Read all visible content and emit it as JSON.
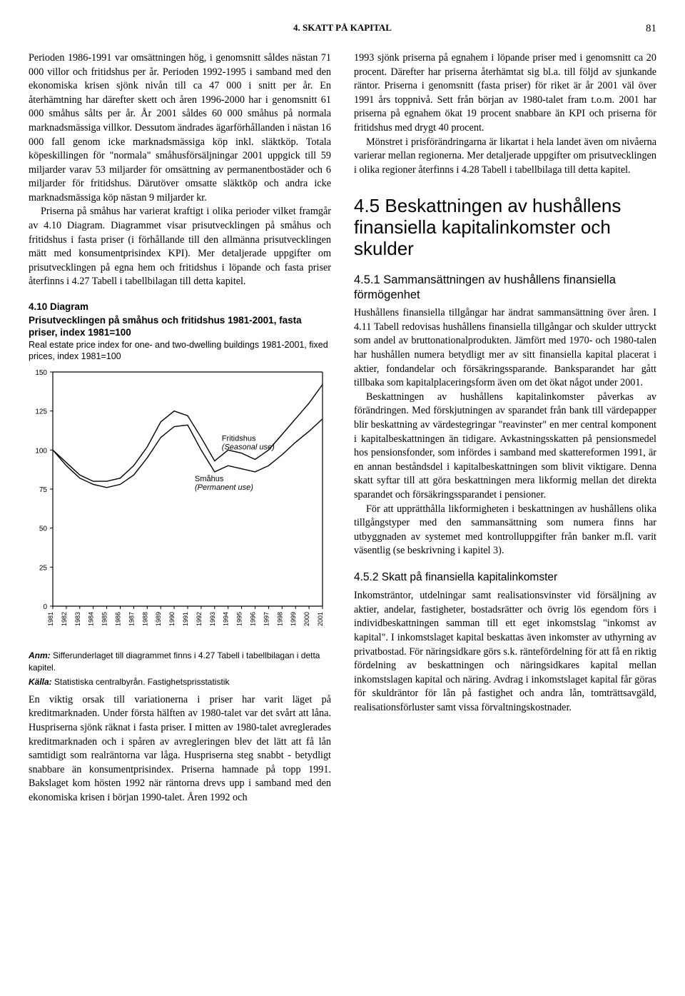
{
  "header": {
    "section_title": "4. SKATT PÅ KAPITAL",
    "page_number": "81"
  },
  "left": {
    "p1": "Perioden 1986-1991 var omsättningen hög, i genomsnitt såldes nästan 71 000 villor och fritidshus per år. Perioden 1992-1995 i samband med den ekonomiska krisen sjönk nivån till ca 47 000 i snitt per år. En återhämtning har därefter skett och åren 1996-2000 har i genomsnitt 61 000 småhus sålts per år. År 2001 såldes 60 000 småhus på normala marknadsmässiga villkor. Dessutom ändrades ägarförhållanden i nästan 16 000 fall genom icke marknadsmässiga köp inkl. släktköp. Totala köpeskillingen för \"normala\" småhusförsäljningar 2001 uppgick till 59 miljarder varav 53 miljarder för omsättning av permanentbostäder och 6 miljarder för fritidshus. Därutöver omsatte släktköp och andra icke marknadsmässiga köp nästan 9 miljarder kr.",
    "p2": "Priserna på småhus har varierat kraftigt i olika perioder vilket framgår av 4.10 Diagram. Diagrammet visar prisutvecklingen på småhus och fritidshus i fasta priser (i förhållande till den allmänna prisutvecklingen mätt med konsumentprisindex KPI). Mer detaljerade uppgifter om prisutvecklingen på egna hem och fritidshus i löpande och fasta priser återfinns i 4.27 Tabell i tabellbilagan till detta kapitel.",
    "diagram": {
      "label": "4.10 Diagram",
      "title_sv": "Prisutvecklingen på småhus och fritidshus 1981-2001, fasta priser, index 1981=100",
      "title_en": "Real estate price index for one- and two-dwelling buildings 1981-2001, fixed prices, index 1981=100",
      "note_anm_label": "Anm:",
      "note_anm": " Sifferunderlaget till diagrammet finns i 4.27 Tabell i tabellbilagan i detta kapitel.",
      "note_kalla_label": "Källa:",
      "note_kalla": " Statistiska centralbyrån. Fastighetsprisstatistik"
    },
    "p3": "En viktig orsak till variationerna i priser har varit läget på kreditmarknaden. Under första hälften av 1980-talet var det svårt att låna. Huspriserna sjönk räknat i fasta priser. I mitten av 1980-talet avreglerades kreditmarknaden och i spåren av avregleringen blev det lätt att få lån samtidigt som realräntorna var låga. Huspriserna steg snabbt - betydligt snabbare än konsumentprisindex. Priserna hamnade på topp 1991. Bakslaget kom hösten 1992 när räntorna drevs upp i samband med den ekonomiska krisen i början 1990-talet. Åren 1992 och"
  },
  "right": {
    "p1": "1993 sjönk priserna på egnahem i löpande priser med i genomsnitt ca 20 procent. Därefter har priserna återhämtat sig bl.a. till följd av sjunkande räntor. Priserna i genomsnitt (fasta priser) för riket är år 2001 väl över 1991 års toppnivå. Sett från början av 1980-talet fram t.o.m. 2001 har priserna på egnahem ökat 19 procent snabbare än KPI och priserna för fritidshus med drygt 40 procent.",
    "p2": "Mönstret i prisförändringarna är likartat i hela landet även om nivåerna varierar mellan regionerna. Mer detaljerade uppgifter om prisutvecklingen i olika regioner återfinns i 4.28 Tabell i tabellbilaga till detta kapitel.",
    "section_heading": "4.5 Beskattningen av hushållens finansiella kapitalinkomster och skulder",
    "sub1_heading": "4.5.1 Sammansättningen av hushållens finansiella förmögenhet",
    "sub1_p1": "Hushållens finansiella tillgångar har ändrat sammansättning över åren. I 4.11 Tabell redovisas hushållens finansiella tillgångar och skulder uttryckt som andel av bruttonationalprodukten. Jämfört med 1970- och 1980-talen har hushållen numera betydligt mer av sitt finansiella kapital placerat i aktier, fondandelar och försäkringssparande. Banksparandet har gått tillbaka som kapitalplaceringsform även om det ökat något under 2001.",
    "sub1_p2": "Beskattningen av hushållens kapitalinkomster påverkas av förändringen. Med förskjutningen av sparandet från bank till värdepapper blir beskattning av värdestegringar \"reavinster\" en mer central komponent i kapitalbeskattningen än tidigare. Avkastningsskatten på pensionsmedel hos pensionsfonder, som infördes i samband med skattereformen 1991, är en annan beståndsdel i kapitalbeskattningen som blivit viktigare. Denna skatt syftar till att göra beskattningen mera likformig mellan det direkta sparandet och försäkringssparandet i pensioner.",
    "sub1_p3": "För att upprätthålla likformigheten i beskattningen av hushållens olika tillgångstyper med den sammansättning som numera finns har utbyggnaden av systemet med kontrolluppgifter från banker m.fl. varit väsentlig (se beskrivning i kapitel 3).",
    "sub2_heading": "4.5.2 Skatt på finansiella kapitalinkomster",
    "sub2_p1": "Inkomsträntor, utdelningar samt realisationsvinster vid försäljning av aktier, andelar, fastigheter, bostadsrätter och övrig lös egendom förs i individbeskattningen samman till ett eget inkomstslag \"inkomst av kapital\". I inkomstslaget kapital beskattas även inkomster av uthyrning av privatbostad. För näringsidkare görs s.k. räntefördelning för att få en riktig fördelning av beskattningen och näringsidkares kapital mellan inkomstslagen kapital och näring. Avdrag i inkomstslaget kapital får göras för skuldräntor för lån på fastighet och andra lån, tomträttsavgäld, realisationsförluster samt vissa förvaltningskostnader."
  },
  "chart": {
    "type": "line",
    "ylim": [
      0,
      150
    ],
    "yticks": [
      0,
      25,
      50,
      75,
      100,
      125,
      150
    ],
    "years": [
      "1981",
      "1982",
      "1983",
      "1984",
      "1985",
      "1986",
      "1987",
      "1988",
      "1989",
      "1990",
      "1991",
      "1992",
      "1993",
      "1994",
      "1995",
      "1996",
      "1997",
      "1998",
      "1999",
      "2000",
      "2001"
    ],
    "series": [
      {
        "name": "Småhus",
        "label_line1": "Småhus",
        "label_line2": "(Permanent use)",
        "color": "#000000",
        "stroke_width": 1.4,
        "values": [
          100,
          90,
          82,
          78,
          76,
          78,
          84,
          95,
          108,
          115,
          116,
          100,
          86,
          90,
          88,
          86,
          90,
          97,
          105,
          112,
          120
        ]
      },
      {
        "name": "Fritidshus",
        "label_line1": "Fritidshus",
        "label_line2": "(Seasonal use)",
        "color": "#000000",
        "stroke_width": 1.4,
        "values": [
          100,
          92,
          84,
          80,
          80,
          82,
          90,
          102,
          118,
          125,
          122,
          108,
          93,
          100,
          98,
          94,
          100,
          110,
          120,
          130,
          142
        ]
      }
    ],
    "background": "#ffffff",
    "axis_color": "#000000",
    "label_fontsize": 11,
    "tick_fontsize": 10
  }
}
